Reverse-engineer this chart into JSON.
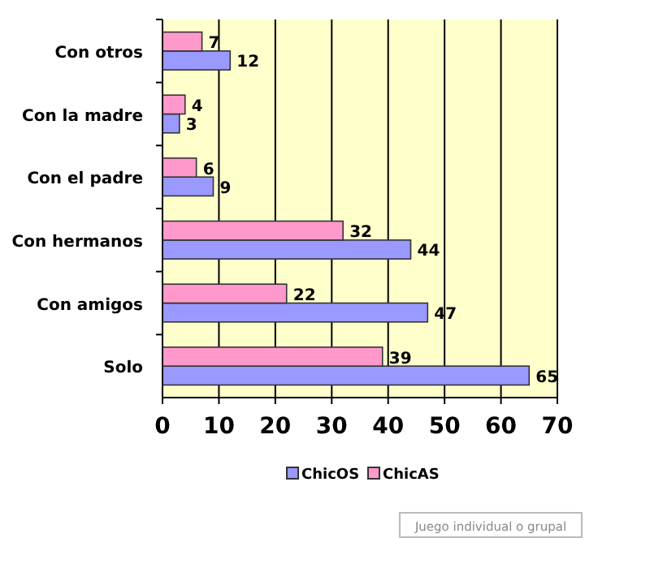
{
  "chart_data": {
    "type": "bar",
    "orientation": "horizontal",
    "categories": [
      "Con otros",
      "Con la madre",
      "Con el padre",
      "Con hermanos",
      "Con amigos",
      "Solo"
    ],
    "series": [
      {
        "name": "ChicOS",
        "color": "#9999ff",
        "values": [
          12,
          3,
          9,
          44,
          47,
          65
        ]
      },
      {
        "name": "ChicAS",
        "color": "#ff99cc",
        "values": [
          7,
          4,
          6,
          32,
          22,
          39
        ]
      }
    ],
    "xlim": [
      0,
      70
    ],
    "xticks": [
      0,
      10,
      20,
      30,
      40,
      50,
      60,
      70
    ],
    "grid": "x",
    "legend": "bottom",
    "data_labels": true,
    "annotations": [
      "Juego individual o grupal"
    ]
  }
}
